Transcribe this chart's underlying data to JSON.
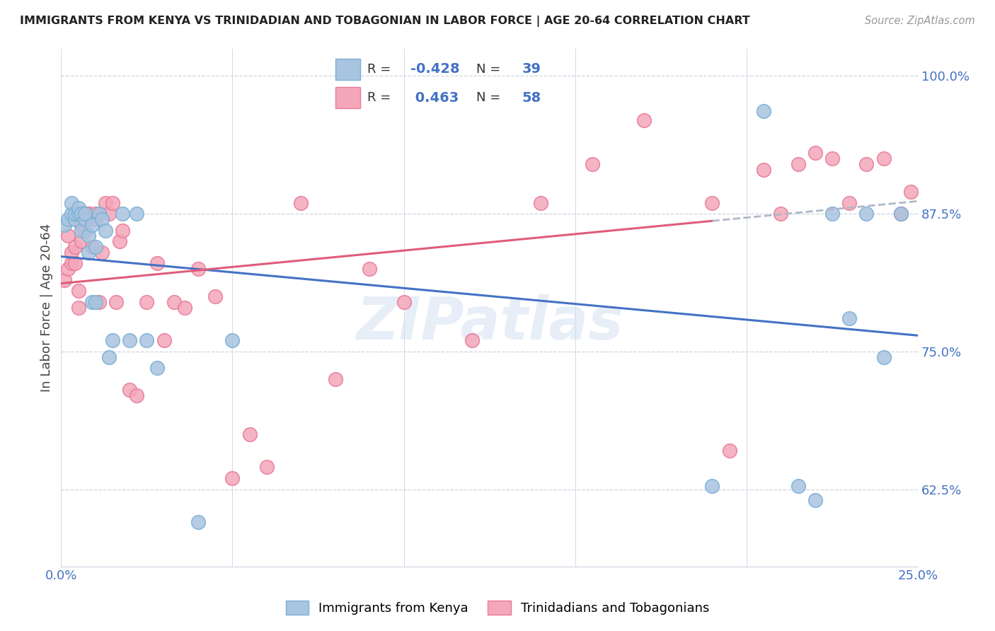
{
  "title": "IMMIGRANTS FROM KENYA VS TRINIDADIAN AND TOBAGONIAN IN LABOR FORCE | AGE 20-64 CORRELATION CHART",
  "source": "Source: ZipAtlas.com",
  "ylabel": "In Labor Force | Age 20-64",
  "xlim": [
    0.0,
    0.25
  ],
  "ylim": [
    0.555,
    1.025
  ],
  "xticks": [
    0.0,
    0.05,
    0.1,
    0.15,
    0.2,
    0.25
  ],
  "xticklabels": [
    "0.0%",
    "",
    "",
    "",
    "",
    "25.0%"
  ],
  "yticks_right": [
    1.0,
    0.875,
    0.75,
    0.625
  ],
  "yticklabels_right": [
    "100.0%",
    "87.5%",
    "75.0%",
    "62.5%"
  ],
  "kenya_color": "#a8c4e0",
  "tnt_color": "#f4a7b9",
  "kenya_edge": "#7bafd4",
  "tnt_edge": "#e87a9a",
  "blue_line_color": "#4472c4",
  "pink_line_color": "#e05c7a",
  "dashed_line_color": "#b0b8c8",
  "grid_color": "#ccd5e0",
  "background_color": "#ffffff",
  "watermark": "ZIPatlas",
  "tick_color": "#4472c4",
  "kenya_x": [
    0.001,
    0.002,
    0.003,
    0.003,
    0.004,
    0.004,
    0.005,
    0.005,
    0.006,
    0.006,
    0.007,
    0.007,
    0.008,
    0.008,
    0.009,
    0.009,
    0.01,
    0.01,
    0.011,
    0.012,
    0.013,
    0.014,
    0.015,
    0.018,
    0.02,
    0.022,
    0.025,
    0.028,
    0.04,
    0.05,
    0.19,
    0.205,
    0.215,
    0.22,
    0.225,
    0.23,
    0.235,
    0.24,
    0.245
  ],
  "kenya_y": [
    0.865,
    0.87,
    0.875,
    0.885,
    0.87,
    0.875,
    0.875,
    0.88,
    0.86,
    0.875,
    0.87,
    0.875,
    0.855,
    0.84,
    0.865,
    0.795,
    0.845,
    0.795,
    0.875,
    0.87,
    0.86,
    0.745,
    0.76,
    0.875,
    0.76,
    0.875,
    0.76,
    0.735,
    0.595,
    0.76,
    0.628,
    0.968,
    0.628,
    0.615,
    0.875,
    0.78,
    0.875,
    0.745,
    0.875
  ],
  "tnt_x": [
    0.001,
    0.002,
    0.002,
    0.003,
    0.003,
    0.004,
    0.004,
    0.005,
    0.005,
    0.006,
    0.006,
    0.007,
    0.007,
    0.008,
    0.008,
    0.009,
    0.01,
    0.01,
    0.011,
    0.012,
    0.013,
    0.014,
    0.015,
    0.016,
    0.017,
    0.018,
    0.02,
    0.022,
    0.025,
    0.028,
    0.03,
    0.033,
    0.036,
    0.04,
    0.045,
    0.05,
    0.055,
    0.06,
    0.07,
    0.08,
    0.09,
    0.1,
    0.12,
    0.14,
    0.155,
    0.17,
    0.19,
    0.195,
    0.205,
    0.21,
    0.215,
    0.22,
    0.225,
    0.23,
    0.235,
    0.24,
    0.245,
    0.248
  ],
  "tnt_y": [
    0.815,
    0.825,
    0.855,
    0.83,
    0.84,
    0.845,
    0.83,
    0.79,
    0.805,
    0.85,
    0.865,
    0.86,
    0.875,
    0.875,
    0.875,
    0.845,
    0.875,
    0.87,
    0.795,
    0.84,
    0.885,
    0.875,
    0.885,
    0.795,
    0.85,
    0.86,
    0.715,
    0.71,
    0.795,
    0.83,
    0.76,
    0.795,
    0.79,
    0.825,
    0.8,
    0.635,
    0.675,
    0.645,
    0.885,
    0.725,
    0.825,
    0.795,
    0.76,
    0.885,
    0.92,
    0.96,
    0.885,
    0.66,
    0.915,
    0.875,
    0.92,
    0.93,
    0.925,
    0.885,
    0.92,
    0.925,
    0.875,
    0.895
  ]
}
